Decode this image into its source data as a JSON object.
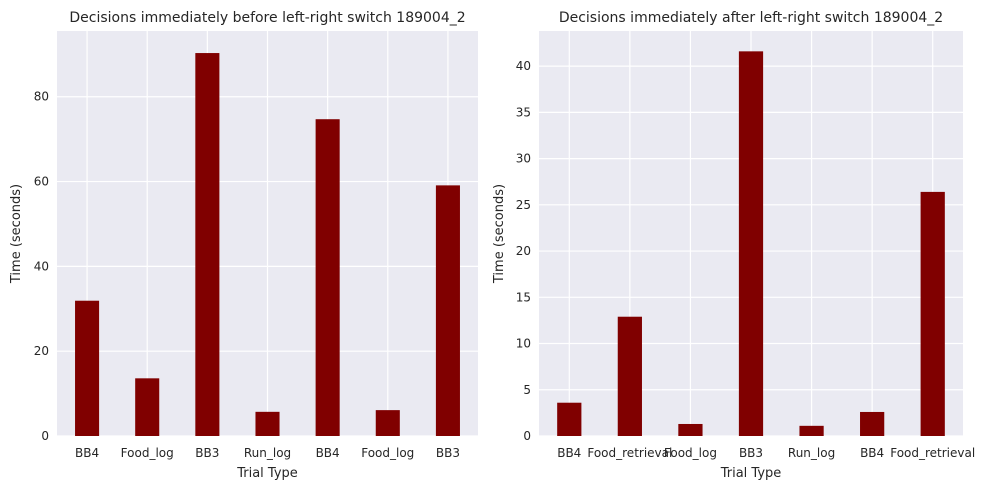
{
  "colors": {
    "bar": "#800000",
    "plot_bg": "#eaeaf2",
    "grid": "#ffffff",
    "text": "#262626"
  },
  "chart_data": [
    {
      "type": "bar",
      "title": "Decisions immediately before left-right switch 189004_2",
      "xlabel": "Trial Type",
      "ylabel": "Time (seconds)",
      "categories": [
        "BB4",
        "Food_log",
        "BB3",
        "Run_log",
        "BB4",
        "Food_log",
        "BB3"
      ],
      "values": [
        31.9,
        13.6,
        90.3,
        5.7,
        74.7,
        6.1,
        59.1
      ],
      "ylim": [
        0,
        95.5
      ],
      "yticks": [
        0,
        20,
        40,
        60,
        80
      ],
      "grid": true,
      "legend": "none"
    },
    {
      "type": "bar",
      "title": "Decisions immediately after left-right switch 189004_2",
      "xlabel": "Trial Type",
      "ylabel": "Time (seconds)",
      "categories": [
        "BB4",
        "Food_retrieval",
        "Food_log",
        "BB3",
        "Run_log",
        "BB4",
        "Food_retrieval"
      ],
      "values": [
        3.6,
        12.9,
        1.3,
        41.6,
        1.1,
        2.6,
        26.4
      ],
      "ylim": [
        0,
        43.8
      ],
      "yticks": [
        0,
        5,
        10,
        15,
        20,
        25,
        30,
        35,
        40
      ],
      "grid": true,
      "legend": "none"
    }
  ]
}
